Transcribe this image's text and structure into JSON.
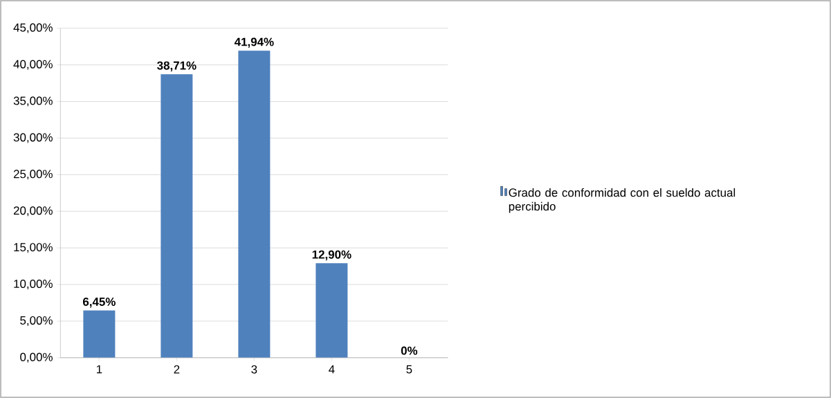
{
  "chart_data": {
    "type": "bar",
    "categories": [
      "1",
      "2",
      "3",
      "4",
      "5"
    ],
    "series": [
      {
        "name": "Grado de conformidad con el sueldo actual percibido",
        "color": "#4f81bd",
        "values": [
          6.45,
          38.71,
          41.94,
          12.9,
          0
        ]
      }
    ],
    "value_labels": [
      "6,45%",
      "38,71%",
      "41,94%",
      "12,90%",
      "0%"
    ],
    "ylim": [
      0,
      45
    ],
    "yticks": [
      {
        "value": 0,
        "label": "0,00%"
      },
      {
        "value": 5,
        "label": "5,00%"
      },
      {
        "value": 10,
        "label": "10,00%"
      },
      {
        "value": 15,
        "label": "15,00%"
      },
      {
        "value": 20,
        "label": "20,00%"
      },
      {
        "value": 25,
        "label": "25,00%"
      },
      {
        "value": 30,
        "label": "30,00%"
      },
      {
        "value": 35,
        "label": "35,00%"
      },
      {
        "value": 40,
        "label": "40,00%"
      },
      {
        "value": 45,
        "label": "45,00%"
      }
    ],
    "grid": "y",
    "legend": "right"
  }
}
